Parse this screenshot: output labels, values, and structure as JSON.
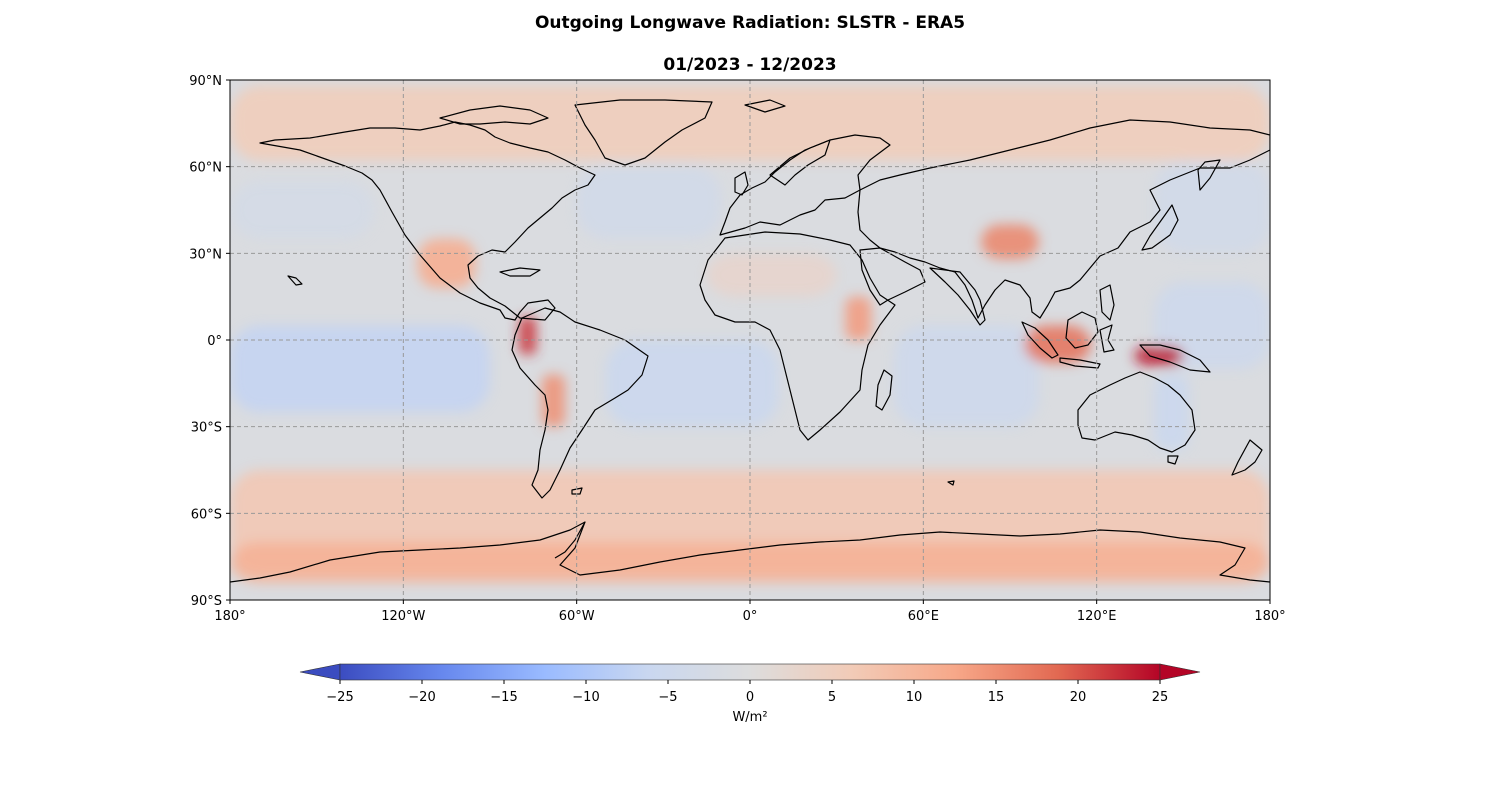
{
  "figure": {
    "title": "Outgoing Longwave Radiation: SLSTR - ERA5",
    "subtitle": "01/2023 - 12/2023"
  },
  "map": {
    "projection": "PlateCarree",
    "extent": {
      "lon": [
        -180,
        180
      ],
      "lat": [
        -90,
        90
      ]
    },
    "gridlines": {
      "style": "dashed",
      "color": "#999999"
    },
    "coastlines": true,
    "lon_ticks": [
      {
        "value": -180,
        "label": "180°"
      },
      {
        "value": -120,
        "label": "120°W"
      },
      {
        "value": -60,
        "label": "60°W"
      },
      {
        "value": 0,
        "label": "0°"
      },
      {
        "value": 60,
        "label": "60°E"
      },
      {
        "value": 120,
        "label": "120°E"
      },
      {
        "value": 180,
        "label": "180°"
      }
    ],
    "lat_ticks": [
      {
        "value": 90,
        "label": "90°N"
      },
      {
        "value": 60,
        "label": "60°N"
      },
      {
        "value": 30,
        "label": "30°N"
      },
      {
        "value": 0,
        "label": "0°"
      },
      {
        "value": -30,
        "label": "30°S"
      },
      {
        "value": -60,
        "label": "60°S"
      },
      {
        "value": -90,
        "label": "90°S"
      }
    ],
    "field_regions": [
      {
        "name": "arctic-ocean",
        "lon": [
          -180,
          180
        ],
        "lat": [
          62,
          88
        ],
        "value": 6
      },
      {
        "name": "southern-ocean",
        "lon": [
          -180,
          180
        ],
        "lat": [
          -80,
          -45
        ],
        "value": 7
      },
      {
        "name": "antarctic-coast",
        "lon": [
          -180,
          180
        ],
        "lat": [
          -84,
          -70
        ],
        "value": 11
      },
      {
        "name": "east-pacific-tropics",
        "lon": [
          -180,
          -90
        ],
        "lat": [
          -25,
          5
        ],
        "value": -7
      },
      {
        "name": "atlantic-south",
        "lon": [
          -50,
          10
        ],
        "lat": [
          -30,
          0
        ],
        "value": -6
      },
      {
        "name": "indian-ocean",
        "lon": [
          50,
          100
        ],
        "lat": [
          -30,
          5
        ],
        "value": -5
      },
      {
        "name": "west-pacific",
        "lon": [
          140,
          180
        ],
        "lat": [
          -10,
          20
        ],
        "value": -5
      },
      {
        "name": "north-atlantic",
        "lon": [
          -60,
          -10
        ],
        "lat": [
          35,
          60
        ],
        "value": -4
      },
      {
        "name": "north-pacific",
        "lon": [
          -180,
          -130
        ],
        "lat": [
          35,
          55
        ],
        "value": -3
      },
      {
        "name": "tibet",
        "lon": [
          80,
          100
        ],
        "lat": [
          28,
          40
        ],
        "value": 16
      },
      {
        "name": "mexico-sw-us",
        "lon": [
          -115,
          -95
        ],
        "lat": [
          18,
          35
        ],
        "value": 12
      },
      {
        "name": "andes-north",
        "lon": [
          -80,
          -74
        ],
        "lat": [
          -5,
          8
        ],
        "value": 22
      },
      {
        "name": "andes-central",
        "lon": [
          -72,
          -64
        ],
        "lat": [
          -30,
          -12
        ],
        "value": 15
      },
      {
        "name": "indonesia",
        "lon": [
          95,
          118
        ],
        "lat": [
          -8,
          5
        ],
        "value": 18
      },
      {
        "name": "new-guinea",
        "lon": [
          133,
          150
        ],
        "lat": [
          -9,
          -2
        ],
        "value": 24
      },
      {
        "name": "east-africa",
        "lon": [
          33,
          42
        ],
        "lat": [
          0,
          15
        ],
        "value": 14
      },
      {
        "name": "sahara",
        "lon": [
          -15,
          30
        ],
        "lat": [
          15,
          30
        ],
        "value": 3
      },
      {
        "name": "eastern-australia",
        "lon": [
          140,
          152
        ],
        "lat": [
          -38,
          -12
        ],
        "value": -6
      },
      {
        "name": "east-asia-pacific",
        "lon": [
          140,
          180
        ],
        "lat": [
          30,
          62
        ],
        "value": -4
      }
    ]
  },
  "colorbar": {
    "colormap": "coolwarm",
    "colors": [
      "#3b4cc0",
      "#6788ee",
      "#9abbff",
      "#c9d7f0",
      "#dddddd",
      "#f2cbb7",
      "#f7a889",
      "#e26952",
      "#b40426"
    ],
    "vmin": -25,
    "vmax": 25,
    "extend": "both",
    "ticks": [
      {
        "value": -25,
        "label": "−25"
      },
      {
        "value": -20,
        "label": "−20"
      },
      {
        "value": -15,
        "label": "−15"
      },
      {
        "value": -10,
        "label": "−10"
      },
      {
        "value": -5,
        "label": "−5"
      },
      {
        "value": 0,
        "label": "0"
      },
      {
        "value": 5,
        "label": "5"
      },
      {
        "value": 10,
        "label": "10"
      },
      {
        "value": 15,
        "label": "15"
      },
      {
        "value": 20,
        "label": "20"
      },
      {
        "value": 25,
        "label": "25"
      }
    ],
    "label": "W/m²"
  }
}
